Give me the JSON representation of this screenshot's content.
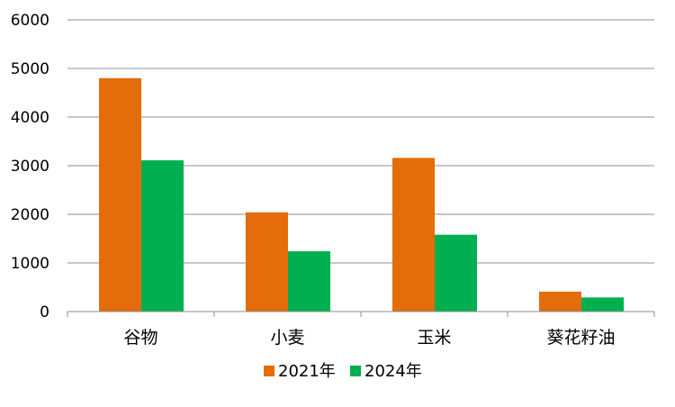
{
  "chart_data": {
    "type": "bar",
    "categories": [
      "谷物",
      "小麦",
      "玉米",
      "葵花籽油"
    ],
    "series": [
      {
        "name": "2021年",
        "values": [
          4800,
          2040,
          3160,
          410
        ],
        "color": "#E46C0A"
      },
      {
        "name": "2024年",
        "values": [
          3110,
          1240,
          1580,
          290
        ],
        "color": "#00B050"
      }
    ],
    "ylim": [
      0,
      6000
    ],
    "yticks": [
      0,
      1000,
      2000,
      3000,
      4000,
      5000,
      6000
    ],
    "grid": true,
    "legend": "bottom-center"
  }
}
